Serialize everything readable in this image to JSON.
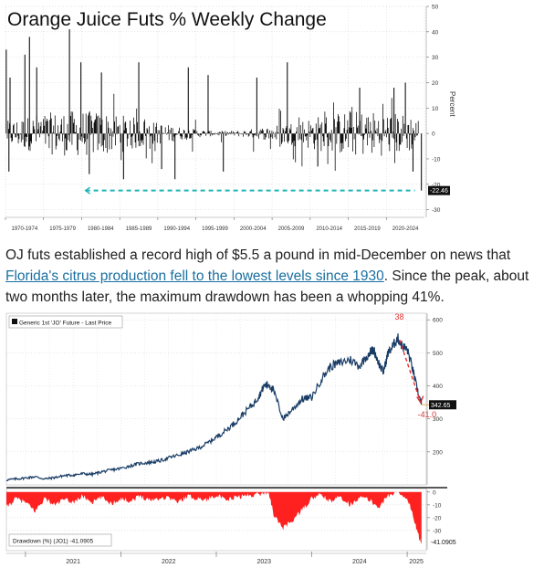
{
  "article": {
    "text_before": "OJ futs established a record high of $5.5 a pound in mid-December on news that ",
    "link_text": "Florida's citrus production fell to the lowest levels since 1930",
    "text_after": ". Since the peak, about two months later, the maximum drawdown has been a whopping 41%."
  },
  "chart_data": [
    {
      "type": "bar",
      "title": "Orange Juice Futs % Weekly Change",
      "ylabel": "Percent",
      "ylim": [
        -33,
        50
      ],
      "yticks": [
        50,
        40,
        30,
        20,
        10,
        0,
        -10,
        -20,
        -30
      ],
      "categories": [
        "1970-1974",
        "1975-1979",
        "1980-1984",
        "1985-1989",
        "1990-1994",
        "1995-1999",
        "2000-2004",
        "2005-2009",
        "2010-2014",
        "2015-2019",
        "2020-2024"
      ],
      "last_value_label": "-22.46",
      "last_value": -22.46,
      "reference_line": {
        "value": -22.46,
        "style": "dashed",
        "color": "#1fb3b3"
      },
      "spikes": [
        {
          "category_pos": 0.02,
          "value": 33
        },
        {
          "category_pos": 0.09,
          "value": -15
        },
        {
          "category_pos": 0.12,
          "value": 22
        },
        {
          "category_pos": 0.51,
          "value": 31
        },
        {
          "category_pos": 0.63,
          "value": 38
        },
        {
          "category_pos": 0.82,
          "value": 26
        },
        {
          "category_pos": 1.68,
          "value": 41
        },
        {
          "category_pos": 1.98,
          "value": 28
        },
        {
          "category_pos": 2.2,
          "value": -16
        },
        {
          "category_pos": 2.52,
          "value": 24
        },
        {
          "category_pos": 3.1,
          "value": -18
        },
        {
          "category_pos": 3.5,
          "value": 28
        },
        {
          "category_pos": 4.1,
          "value": -14
        },
        {
          "category_pos": 4.45,
          "value": -18
        },
        {
          "category_pos": 4.8,
          "value": 26
        },
        {
          "category_pos": 5.32,
          "value": 23
        },
        {
          "category_pos": 5.72,
          "value": -15
        },
        {
          "category_pos": 6.6,
          "value": 22
        },
        {
          "category_pos": 7.4,
          "value": 28
        },
        {
          "category_pos": 8.2,
          "value": -13
        },
        {
          "category_pos": 9.3,
          "value": 18
        },
        {
          "category_pos": 10.2,
          "value": 18
        },
        {
          "category_pos": 10.5,
          "value": 20
        },
        {
          "category_pos": 10.7,
          "value": -15
        },
        {
          "category_pos": 10.92,
          "value": -22.46
        }
      ]
    },
    {
      "type": "line",
      "legend": "Generic 1st 'JO' Future - Last Price",
      "series": [
        {
          "name": "Generic 1st 'JO' Future - Last Price",
          "color": "#1a3d66",
          "x": [
            2020.8,
            2020.9,
            2021.0,
            2021.1,
            2021.2,
            2021.3,
            2021.4,
            2021.5,
            2021.6,
            2021.7,
            2021.8,
            2021.9,
            2022.0,
            2022.1,
            2022.2,
            2022.3,
            2022.4,
            2022.5,
            2022.6,
            2022.7,
            2022.8,
            2022.9,
            2023.0,
            2023.1,
            2023.2,
            2023.3,
            2023.4,
            2023.45,
            2023.5,
            2023.55,
            2023.6,
            2023.7,
            2023.8,
            2023.9,
            2024.0,
            2024.1,
            2024.2,
            2024.3,
            2024.4,
            2024.5,
            2024.6,
            2024.65,
            2024.7,
            2024.75,
            2024.8,
            2024.85,
            2024.9,
            2024.95,
            2025.0,
            2025.05,
            2025.1,
            2025.15
          ],
          "values": [
            115,
            118,
            121,
            125,
            118,
            122,
            128,
            130,
            134,
            132,
            140,
            145,
            150,
            158,
            165,
            168,
            172,
            182,
            190,
            200,
            210,
            225,
            245,
            265,
            290,
            320,
            350,
            370,
            400,
            405,
            385,
            300,
            330,
            360,
            365,
            420,
            460,
            470,
            480,
            460,
            500,
            510,
            470,
            440,
            500,
            520,
            545,
            520,
            510,
            460,
            395,
            342.65
          ]
        }
      ],
      "ylim": [
        100,
        620
      ],
      "yticks": [
        200,
        300,
        400,
        500,
        600
      ],
      "last_value_label": "342.65",
      "last_value": 342.65,
      "annotations": [
        {
          "text": "38",
          "color": "#e03030"
        },
        {
          "text": "-41.0",
          "color": "#e03030"
        }
      ],
      "xticks": [
        "2021",
        "2022",
        "2023",
        "2024",
        "2025"
      ],
      "xtick_values": [
        2021,
        2022,
        2023,
        2024,
        2025
      ]
    },
    {
      "type": "area",
      "legend": "Drawdown (%) (JO1) -41.0905",
      "series": [
        {
          "name": "Drawdown (%) (JO1)",
          "color": "#ff2020",
          "x": [
            2020.8,
            2020.9,
            2021.0,
            2021.1,
            2021.2,
            2021.3,
            2021.4,
            2021.5,
            2021.6,
            2021.7,
            2021.8,
            2021.9,
            2022.0,
            2022.1,
            2022.2,
            2022.3,
            2022.4,
            2022.5,
            2022.6,
            2022.7,
            2022.8,
            2022.9,
            2023.0,
            2023.1,
            2023.2,
            2023.3,
            2023.4,
            2023.5,
            2023.55,
            2023.6,
            2023.7,
            2023.8,
            2023.9,
            2024.0,
            2024.1,
            2024.2,
            2024.3,
            2024.4,
            2024.5,
            2024.6,
            2024.7,
            2024.8,
            2024.9,
            2025.0,
            2025.05,
            2025.1,
            2025.15
          ],
          "values": [
            -12,
            -5,
            -8,
            -15,
            -5,
            -10,
            -6,
            -8,
            -3,
            -8,
            -4,
            -9,
            -5,
            -7,
            -3,
            -6,
            -5,
            -4,
            -8,
            -3,
            -5,
            -6,
            -2,
            -7,
            -4,
            -3,
            -2,
            -1,
            0,
            -18,
            -28,
            -22,
            -14,
            -5,
            -2,
            -8,
            -3,
            -10,
            -4,
            -6,
            -12,
            -3,
            0,
            -5,
            -15,
            -30,
            -41.09
          ]
        }
      ],
      "ylim": [
        -45,
        2
      ],
      "yticks": [
        0,
        -10,
        -20,
        -30
      ],
      "last_value_label": "-41.0905"
    }
  ]
}
